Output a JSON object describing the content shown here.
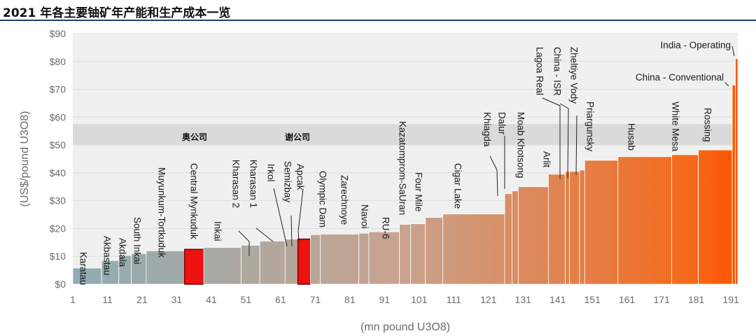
{
  "page": {
    "title": "2021 年各主要铀矿年产能和生产成本一览"
  },
  "chart_data": {
    "type": "bar",
    "title": "2021 年各主要铀矿年产能和生产成本一览",
    "xlabel": "(mn pound U3O8)",
    "ylabel": "(US$/pound U3O8)",
    "xlim": [
      1,
      193
    ],
    "ylim": [
      0,
      90
    ],
    "x_ticks": [
      1,
      11,
      21,
      31,
      41,
      51,
      61,
      71,
      81,
      91,
      101,
      111,
      121,
      131,
      141,
      151,
      161,
      171,
      181,
      191
    ],
    "y_ticks": [
      0,
      10,
      20,
      30,
      40,
      50,
      60,
      70,
      80,
      90
    ],
    "y_tick_labels": [
      "$0",
      "$10",
      "$20",
      "$30",
      "$40",
      "$50",
      "$60",
      "$70",
      "$80",
      "$90"
    ],
    "shaded_band": [
      50,
      57.5
    ],
    "color_ramp": [
      "#8fadb3",
      "#c9a38e",
      "#f36a1e",
      "#ff5500"
    ],
    "highlight_color": "#ee1111",
    "annotations": [
      {
        "text": "奥公司",
        "target": "Central Mynkuduk"
      },
      {
        "text": "谢公司",
        "target": "Semizbay"
      }
    ],
    "bars": [
      {
        "name": "Karatau",
        "x0": 1,
        "x1": 9.3,
        "y": 5.8
      },
      {
        "name": "Akbastau",
        "x0": 9.3,
        "x1": 14.3,
        "y": 8.5
      },
      {
        "name": "Akdala",
        "x0": 14.3,
        "x1": 17.9,
        "y": 10.3
      },
      {
        "name": "South Inkai",
        "x0": 17.9,
        "x1": 22.2,
        "y": 11
      },
      {
        "name": "Muyunkum-Tortkuduk",
        "x0": 22.2,
        "x1": 33.3,
        "y": 12
      },
      {
        "name": "Central Mynkuduk",
        "x0": 33.3,
        "x1": 38.8,
        "y": 12.5,
        "highlight": true
      },
      {
        "name": "Inkai",
        "x0": 38.8,
        "x1": 49.6,
        "y": 13.2
      },
      {
        "name": "Kharasan 2",
        "x0": 49.6,
        "x1": 55,
        "y": 14
      },
      {
        "name": "Kharasan 1",
        "x0": 55,
        "x1": 62.3,
        "y": 15.5
      },
      {
        "name": "Irkol",
        "x0": 62.3,
        "x1": 66,
        "y": 16.2
      },
      {
        "name": "Semizbay",
        "x0": 66,
        "x1": 69.6,
        "y": 16.2,
        "highlight": true
      },
      {
        "name": "Apcak",
        "x0": 69.6,
        "x1": 72.5,
        "y": 17.8
      },
      {
        "name": "Olympic Dam",
        "x0": 72.5,
        "x1": 83.6,
        "y": 18
      },
      {
        "name": "Zarechnoye",
        "x0": 83.6,
        "x1": 86.5,
        "y": 18.3
      },
      {
        "name": "Navoi",
        "x0": 86.5,
        "x1": 95.3,
        "y": 18.8
      },
      {
        "name": "RU-6",
        "x0": 95.3,
        "x1": 98.5,
        "y": 21.5
      },
      {
        "name": "Kazatomprom-SaUran",
        "x0": 98.5,
        "x1": 102.8,
        "y": 21.7
      },
      {
        "name": "Four Mile",
        "x0": 102.8,
        "x1": 107.8,
        "y": 24
      },
      {
        "name": "Cigar Lake",
        "x0": 107.8,
        "x1": 125.7,
        "y": 25.2
      },
      {
        "name": "Khiagda",
        "x0": 125.7,
        "x1": 127.8,
        "y": 32.5
      },
      {
        "name": "Dalur",
        "x0": 127.8,
        "x1": 129.6,
        "y": 33.5
      },
      {
        "name": "Moab Khotsong",
        "x0": 129.6,
        "x1": 138.3,
        "y": 35
      },
      {
        "name": "Arlit",
        "x0": 138.3,
        "x1": 143.2,
        "y": 39.5
      },
      {
        "name": "Lagoa Real",
        "x0": 143.2,
        "x1": 144.4,
        "y": 40.5
      },
      {
        "name": "China - ISR",
        "x0": 144.4,
        "x1": 147.3,
        "y": 40.5
      },
      {
        "name": "Zheltiye Vody",
        "x0": 147.3,
        "x1": 148.8,
        "y": 41
      },
      {
        "name": "Priargunsky",
        "x0": 148.8,
        "x1": 158.4,
        "y": 44.5
      },
      {
        "name": "Husab",
        "x0": 158.4,
        "x1": 173.9,
        "y": 45.8
      },
      {
        "name": "White Mesa",
        "x0": 173.9,
        "x1": 181.6,
        "y": 46.5
      },
      {
        "name": "Rossing",
        "x0": 181.6,
        "x1": 191.4,
        "y": 48.2
      },
      {
        "name": "China - Conventional",
        "x0": 191.4,
        "x1": 192.3,
        "y": 71.5
      },
      {
        "name": "India - Operating",
        "x0": 192.3,
        "x1": 193,
        "y": 81
      }
    ]
  }
}
